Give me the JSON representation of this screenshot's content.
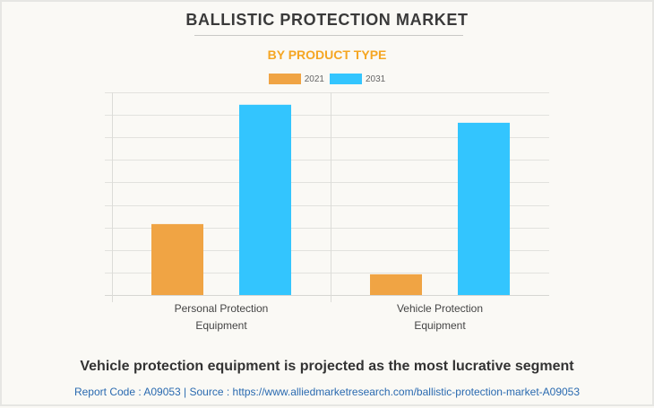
{
  "colors": {
    "series_2021": "#f0a444",
    "series_2031": "#33c5fe",
    "subtitle": "#f5a623",
    "grid": "#e2e2de"
  },
  "header": {
    "title": "BALLISTIC PROTECTION MARKET",
    "subtitle": "BY PRODUCT TYPE"
  },
  "chart_data": {
    "type": "bar",
    "title": "BALLISTIC PROTECTION MARKET",
    "subtitle": "BY PRODUCT TYPE",
    "categories": [
      [
        "Personal Protection",
        "Equipment"
      ],
      [
        "Vehicle Protection",
        "Equipment"
      ]
    ],
    "series": [
      {
        "name": "2021",
        "values": [
          3.15,
          0.92
        ]
      },
      {
        "name": "2031",
        "values": [
          8.45,
          7.65
        ]
      }
    ],
    "xlabel": "",
    "ylabel": "",
    "ylim": [
      0,
      9
    ],
    "grid": true,
    "legend": "top-center"
  },
  "footer": {
    "headline": "Vehicle protection equipment is projected as the most lucrative segment",
    "source": "Report Code : A09053  |  Source : https://www.alliedmarketresearch.com/ballistic-protection-market-A09053"
  }
}
